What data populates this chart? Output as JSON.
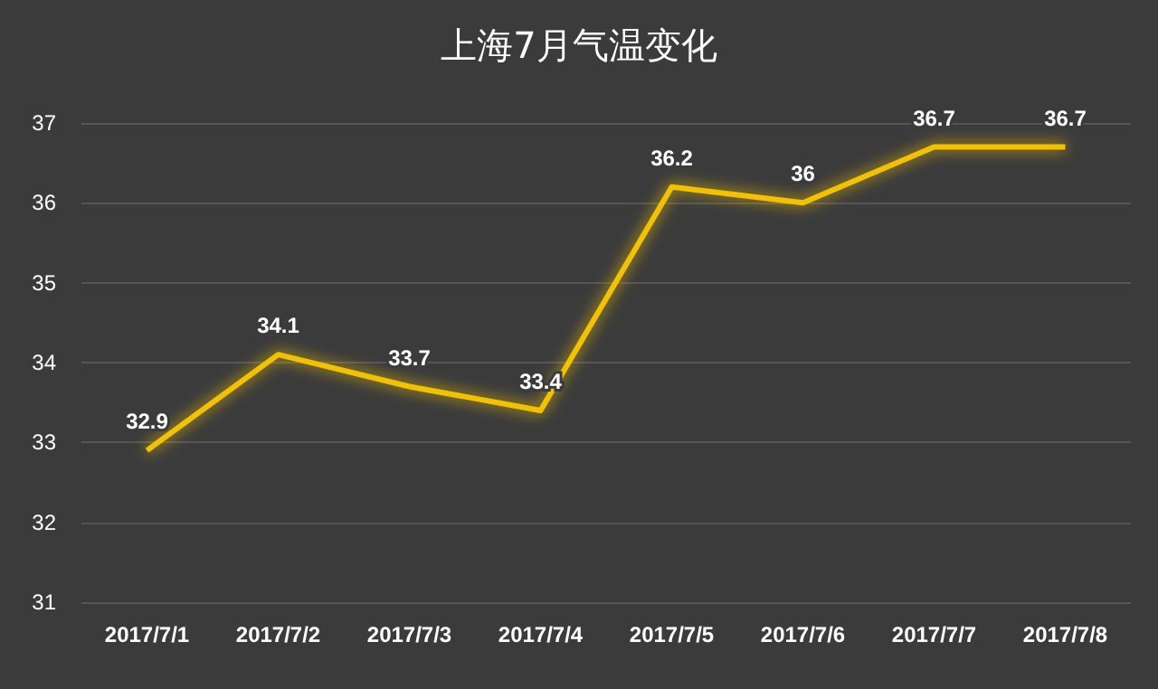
{
  "chart_data": {
    "type": "line",
    "title": "上海7月气温变化",
    "categories": [
      "2017/7/1",
      "2017/7/2",
      "2017/7/3",
      "2017/7/4",
      "2017/7/5",
      "2017/7/6",
      "2017/7/7",
      "2017/7/8"
    ],
    "series": [
      {
        "color": "#f2c200",
        "values": [
          32.9,
          34.1,
          33.7,
          33.4,
          36.2,
          36,
          36.7,
          36.7
        ]
      }
    ],
    "ylim": [
      31,
      37
    ],
    "yticks": [
      31,
      32,
      33,
      34,
      35,
      36,
      37
    ],
    "grid": "y",
    "marker": "none",
    "line_style": "solid",
    "data_labels": true
  }
}
